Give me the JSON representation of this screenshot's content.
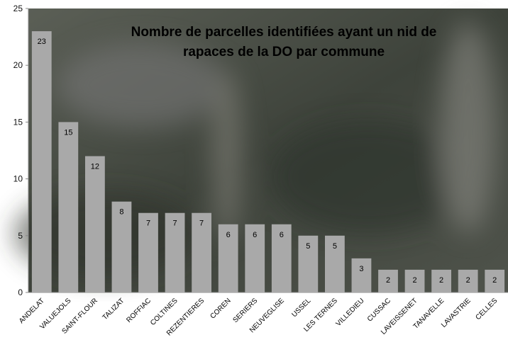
{
  "chart_data": {
    "type": "bar",
    "title": "Nombre de parcelles identifiées ayant un nid de rapaces de la DO par commune",
    "categories": [
      "ANDELAT",
      "VALUEJOLS",
      "SAINT-FLOUR",
      "TALIZAT",
      "ROFFIAC",
      "COLTINES",
      "REZENTIERES",
      "COREN",
      "SERIERS",
      "NEUVEGLISE",
      "USSEL",
      "LES TERNES",
      "VILLEDIEU",
      "CUSSAC",
      "LAVEISSENET",
      "TANAVELLE",
      "LAVASTRIE",
      "CELLES"
    ],
    "values": [
      23,
      15,
      12,
      8,
      7,
      7,
      7,
      6,
      6,
      6,
      5,
      5,
      3,
      2,
      2,
      2,
      2,
      2
    ],
    "color": "#a9a9a9",
    "ylim": [
      0,
      25
    ],
    "yticks": [
      0,
      5,
      10,
      15,
      20,
      25
    ],
    "grid": false
  }
}
